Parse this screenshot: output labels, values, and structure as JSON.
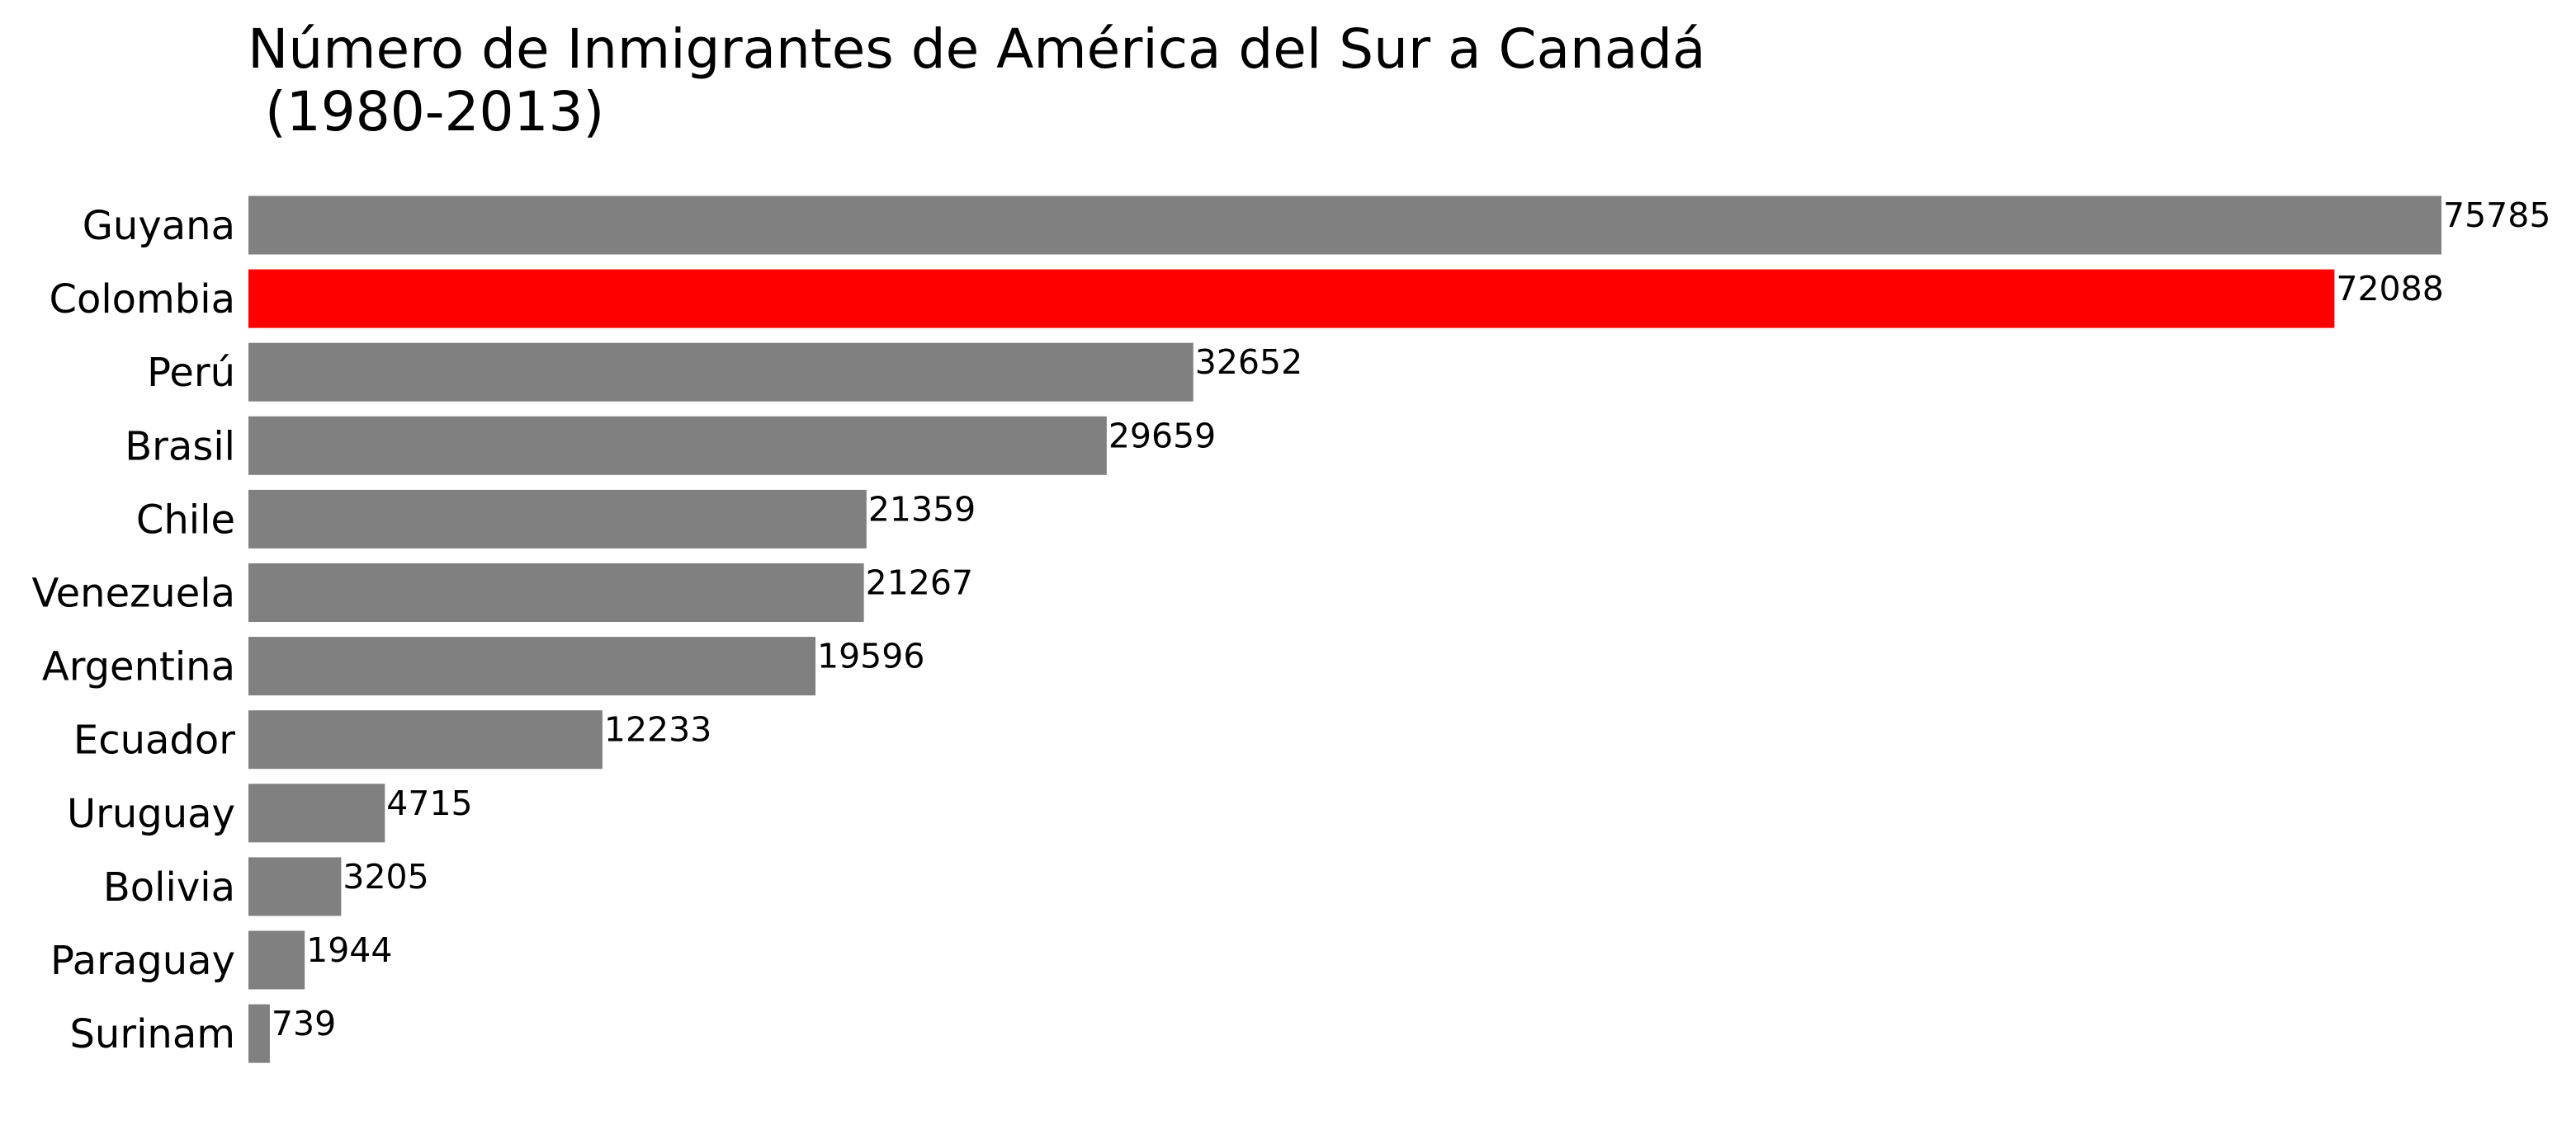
{
  "chart_data": {
    "type": "bar",
    "orientation": "horizontal",
    "title_lines": [
      "Número de Inmigrantes de América del Sur a Canadá",
      " (1980-2013)"
    ],
    "xlabel": "",
    "ylabel": "",
    "grid": false,
    "axes_visible": false,
    "categories": [
      "Guyana",
      "Colombia",
      "Perú",
      "Brasil",
      "Chile",
      "Venezuela",
      "Argentina",
      "Ecuador",
      "Uruguay",
      "Bolivia",
      "Paraguay",
      "Surinam"
    ],
    "values": [
      75785,
      72088,
      32652,
      29659,
      21359,
      21267,
      19596,
      12233,
      4715,
      3205,
      1944,
      739
    ],
    "value_labels": [
      "75785",
      "72088",
      "32652",
      "29659",
      "21359",
      "21267",
      "19596",
      "12233",
      "4715",
      "3205",
      "1944",
      "739"
    ],
    "xlim": [
      0,
      75785
    ],
    "colors": {
      "default": "#808080",
      "highlight": "#ff0000"
    },
    "highlight_category": "Colombia"
  }
}
